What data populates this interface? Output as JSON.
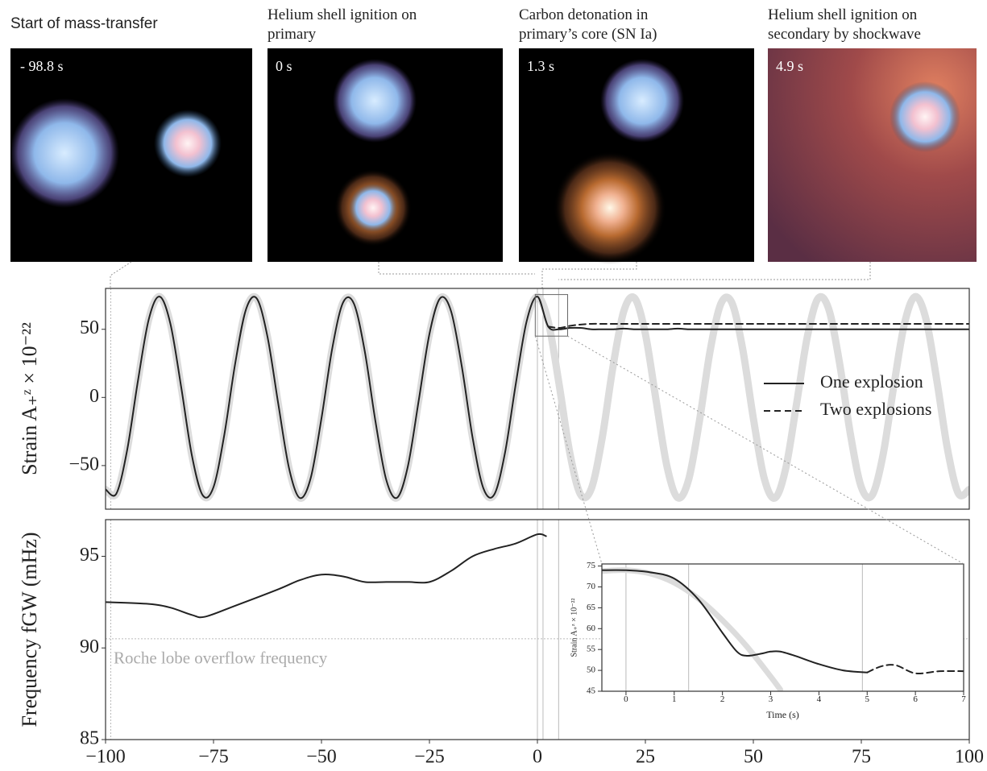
{
  "panels": [
    {
      "caption": [
        "Start of mass-transfer"
      ],
      "time": "- 98.8 s"
    },
    {
      "caption": [
        "Helium shell ignition on",
        "primary"
      ],
      "time": "0 s"
    },
    {
      "caption": [
        "Carbon detonation in",
        "primary’s core (SN Ia)"
      ],
      "time": "1.3 s"
    },
    {
      "caption": [
        "Helium shell ignition on",
        "secondary by shockwave"
      ],
      "time": "4.9 s"
    }
  ],
  "chart_data": [
    {
      "type": "line",
      "ylabel": "Strain A₊ᶻ × 10⁻²²",
      "xlim": [
        -100,
        100
      ],
      "ylim": [
        -82,
        80
      ],
      "yticks": [
        {
          "value": -50,
          "label": "−50"
        },
        0,
        50
      ],
      "legend": "center right",
      "vlines": [
        -98.8,
        0,
        1.3,
        4.9
      ],
      "x": [
        -100,
        -97.5,
        -95,
        -92.5,
        -90,
        -87.5,
        -85,
        -82.5,
        -80,
        -77.5,
        -75,
        -72.5,
        -70,
        -67.5,
        -65,
        -62.5,
        -60,
        -57.5,
        -55,
        -52.5,
        -50,
        -47.5,
        -45,
        -42.5,
        -40,
        -37.5,
        -35,
        -32.5,
        -30,
        -27.5,
        -25,
        -22.5,
        -20,
        -17.5,
        -15,
        -12.5,
        -10,
        -7.5,
        -5,
        -2.5,
        0,
        2.5,
        5,
        7.5,
        10,
        12.5,
        15,
        17.5,
        20,
        22.5,
        25,
        27.5,
        30,
        32.5,
        35,
        37.5,
        40,
        42.5,
        45,
        47.5,
        50,
        52.5,
        55,
        57.5,
        60,
        62.5,
        65,
        67.5,
        70,
        72.5,
        75,
        77.5,
        80,
        82.5,
        85,
        87.5,
        90,
        92.5,
        95,
        97.5,
        100
      ],
      "series": [
        {
          "color": "#dcdcdc",
          "linewidth": 9,
          "values": [
            -67.5,
            -70.6,
            -38.7,
            12.2,
            57.2,
            74,
            54.3,
            7.9,
            -42.7,
            -71.8,
            -65.8,
            -27.4,
            24.5,
            64.4,
            72.7,
            44.5,
            -4.8,
            -52.1,
            -73.8,
            -59.2,
            -15.3,
            36.1,
            69.7,
            68.9,
            34.3,
            -17.6,
            -60.5,
            -73.6,
            -50.6,
            -2.6,
            46.6,
            72.9,
            63.3,
            22.6,
            -29.7,
            -66.8,
            -71.3,
            -40.6,
            10.1,
            55.8,
            74,
            55.8,
            10.1,
            -40.6,
            -71.3,
            -66.8,
            -29.7,
            22.6,
            63.3,
            72.9,
            46.6,
            -2.6,
            -50.6,
            -73.6,
            -60.5,
            -17.6,
            34.3,
            68.9,
            69.7,
            36.1,
            -15.3,
            -59.2,
            -73.8,
            -52.1,
            -4.8,
            44.5,
            72.7,
            64.4,
            24.5,
            -27.4,
            -65.8,
            -71.8,
            -42.7,
            7.9,
            54.3,
            74,
            57.2,
            12.2,
            -38.7,
            -70.6,
            -67.5
          ]
        },
        {
          "name": "One explosion",
          "color": "#222222",
          "linewidth": 2,
          "linestyle": "solid",
          "values": [
            -67.5,
            -70.6,
            -38.7,
            12.2,
            57.2,
            74,
            54.3,
            7.9,
            -42.7,
            -71.8,
            -65.8,
            -27.4,
            24.5,
            64.4,
            72.7,
            44.5,
            -4.8,
            -52.1,
            -73.8,
            -59.2,
            -15.3,
            36.1,
            69.7,
            68.9,
            34.3,
            -17.6,
            -60.5,
            -73.6,
            -50.6,
            -2.6,
            46.6,
            72.9,
            63.3,
            22.6,
            -29.7,
            -66.8,
            -71.3,
            -40.6,
            10.1,
            55.8,
            74,
            52,
            50,
            51,
            51,
            50,
            50,
            50,
            50.5,
            50,
            50,
            50,
            50,
            50.5,
            50,
            50,
            50,
            50,
            50,
            50,
            50,
            50,
            50,
            50,
            50,
            50,
            50,
            50,
            50,
            50,
            50,
            50,
            50,
            50,
            50,
            50,
            50,
            50,
            50,
            50,
            50
          ]
        },
        {
          "name": "Two explosions",
          "color": "#222222",
          "linewidth": 2,
          "linestyle": "dashed",
          "values": [
            null,
            null,
            null,
            null,
            null,
            null,
            null,
            null,
            null,
            null,
            null,
            null,
            null,
            null,
            null,
            null,
            null,
            null,
            null,
            null,
            null,
            null,
            null,
            null,
            null,
            null,
            null,
            null,
            null,
            null,
            null,
            null,
            null,
            null,
            null,
            null,
            null,
            null,
            null,
            null,
            null,
            52,
            51,
            52.5,
            53.5,
            54,
            54,
            54,
            54,
            54,
            54,
            54,
            54,
            54,
            54,
            54,
            54,
            54,
            54,
            54,
            54,
            54,
            54,
            54,
            54,
            54,
            54,
            54,
            54,
            54,
            54,
            54,
            54,
            54,
            54,
            54,
            54,
            54,
            54,
            54,
            54
          ]
        }
      ]
    },
    {
      "type": "line",
      "ylabel": "Frequency fGW (mHz)",
      "xlim": [
        -100,
        100
      ],
      "ylim": [
        85,
        97
      ],
      "xticks": [
        {
          "value": -100,
          "label": "−100"
        },
        {
          "value": -75,
          "label": "−75"
        },
        {
          "value": -50,
          "label": "−50"
        },
        {
          "value": -25,
          "label": "−25"
        },
        0,
        25,
        50,
        75,
        100
      ],
      "yticks": [
        85,
        90,
        95
      ],
      "vlines": [
        -98.8,
        0,
        1.3,
        4.9
      ],
      "hline": 90.5,
      "annotation": "Roche lobe overflow frequency",
      "x": [
        -100,
        -90,
        -85,
        -80,
        -77,
        -70,
        -60,
        -55,
        -50,
        -45,
        -40,
        -35,
        -30,
        -25,
        -20,
        -15,
        -10,
        -5,
        0,
        2
      ],
      "series": [
        {
          "color": "#222222",
          "linewidth": 2,
          "linestyle": "solid",
          "values": [
            92.5,
            92.4,
            92.2,
            91.8,
            91.7,
            92.3,
            93.2,
            93.7,
            94.0,
            93.9,
            93.6,
            93.6,
            93.6,
            93.6,
            94.2,
            95.0,
            95.4,
            95.7,
            96.2,
            96.1
          ]
        }
      ]
    },
    {
      "type": "line",
      "ylabel": "Strain A₊ᶻ × 10⁻²²",
      "xlabel": "Time (s)",
      "xlim": [
        -0.5,
        7
      ],
      "ylim": [
        45,
        75.5
      ],
      "xticks": [
        0,
        1,
        2,
        3,
        4,
        5,
        6,
        7
      ],
      "yticks": [
        45,
        50,
        55,
        60,
        65,
        70,
        75
      ],
      "vlines": [
        0,
        1.3,
        4.9
      ],
      "series": [
        {
          "color": "#dcdcdc",
          "linewidth": 7,
          "x": [
            -0.5,
            0,
            0.5,
            1,
            1.5,
            2,
            2.5,
            3,
            3.2
          ],
          "values": [
            73.8,
            74,
            73.2,
            71,
            67.2,
            62,
            55.8,
            48.5,
            45.4
          ]
        },
        {
          "color": "#222222",
          "linewidth": 2,
          "linestyle": "solid",
          "x": [
            -0.5,
            0,
            0.5,
            1,
            1.5,
            2,
            2.3,
            2.5,
            2.8,
            3,
            3.2,
            3.5,
            4,
            4.5,
            5
          ],
          "values": [
            74,
            74,
            73.5,
            72,
            67,
            59,
            54.5,
            53.5,
            54,
            54.5,
            54.5,
            53.5,
            51.5,
            50,
            49.5
          ]
        },
        {
          "color": "#222222",
          "linewidth": 2,
          "linestyle": "dashed",
          "x": [
            5,
            5.3,
            5.6,
            6,
            6.5,
            7
          ],
          "values": [
            49.5,
            51,
            51.2,
            49.3,
            49.8,
            49.8
          ]
        }
      ]
    }
  ]
}
